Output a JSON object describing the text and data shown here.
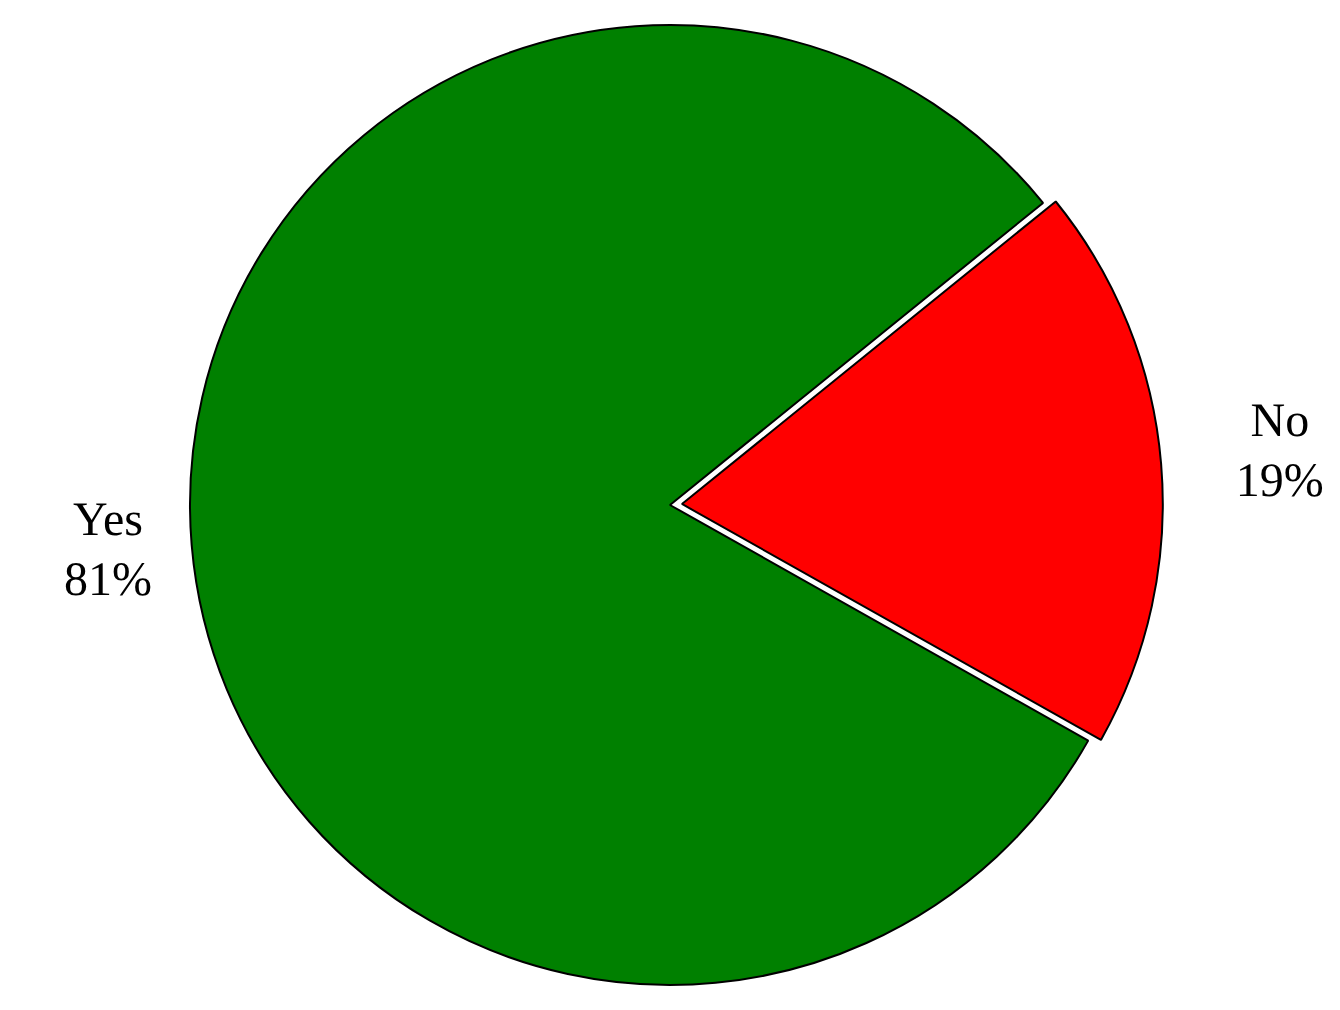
{
  "chart_data": {
    "type": "pie",
    "categories": [
      "Yes",
      "No"
    ],
    "values": [
      81,
      19
    ],
    "colors": [
      "#008000",
      "#ff0000"
    ],
    "value_labels": [
      "81%",
      "19%"
    ],
    "legend": false
  }
}
